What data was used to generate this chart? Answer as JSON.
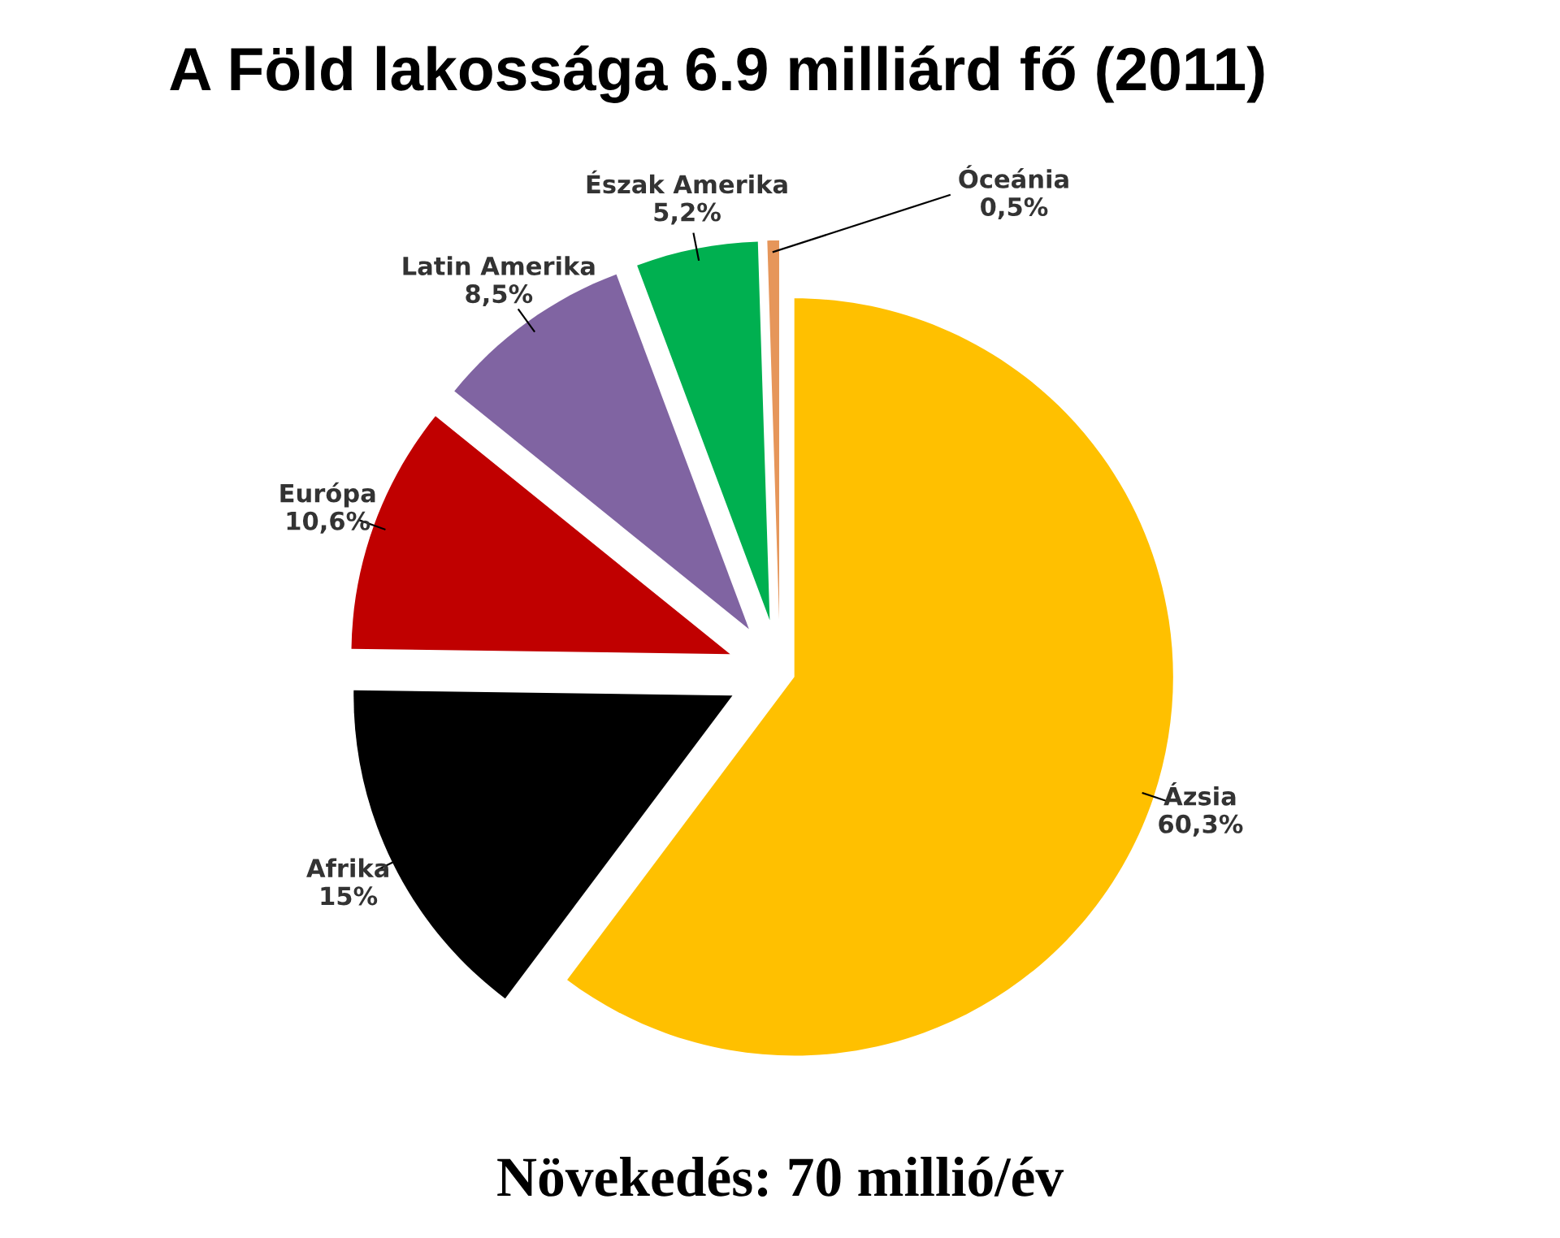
{
  "chart_data": {
    "type": "pie",
    "title": "A Föld lakossága 6.9 milliárd fő (2011)",
    "categories": [
      "Ázsia",
      "Afrika",
      "Európa",
      "Latin Amerika",
      "Észak Amerika",
      "Óceánia"
    ],
    "values": [
      60.3,
      15,
      10.6,
      8.5,
      5.2,
      0.5
    ],
    "value_labels": [
      "60,3%",
      "15%",
      "10,6%",
      "8,5%",
      "5,2%",
      "0,5%"
    ],
    "colors": [
      "#ffc000",
      "#000000",
      "#c00000",
      "#8064a2",
      "#00b050",
      "#e6965a"
    ],
    "annotations": [
      "Növekedés: 70 millió/év"
    ]
  }
}
